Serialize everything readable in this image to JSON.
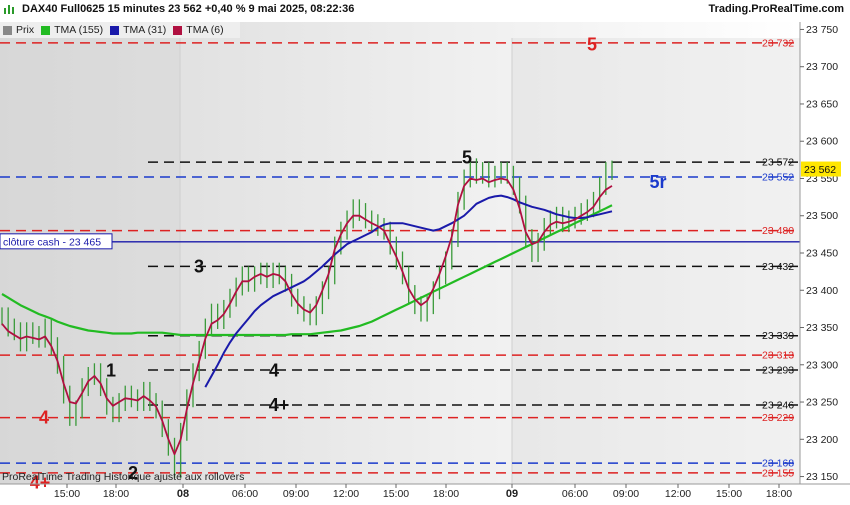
{
  "header": {
    "instrument_line": "DAX40 Full0625 15 minutes 23 562 +0,40 % 9 mai 2025, 08:22:36",
    "site": "Trading.ProRealTime.com"
  },
  "legend": [
    {
      "label": "Prix",
      "color": "#888888"
    },
    {
      "label": "TMA (155)",
      "color": "#22bb22"
    },
    {
      "label": "TMA (31)",
      "color": "#1a1aaa"
    },
    {
      "label": "TMA (6)",
      "color": "#b01040"
    }
  ],
  "footer": "ProRealTime Trading  Historique ajusté aux rollovers",
  "chart_data": {
    "type": "candlestick",
    "ylim": [
      23140,
      23760
    ],
    "y_ticks": [
      "23 150",
      "23 200",
      "23 250",
      "23 300",
      "23 350",
      "23 400",
      "23 450",
      "23 500",
      "23 550",
      "23 600",
      "23 650",
      "23 700",
      "23 750"
    ],
    "y_tick_values": [
      23150,
      23200,
      23250,
      23300,
      23350,
      23400,
      23450,
      23500,
      23550,
      23600,
      23650,
      23700,
      23750
    ],
    "x_ticks": [
      "15:00",
      "18:00",
      "08",
      "06:00",
      "09:00",
      "12:00",
      "15:00",
      "18:00",
      "09",
      "06:00",
      "09:00",
      "12:00",
      "15:00",
      "18:00"
    ],
    "x_tick_bold": [
      "08",
      "09"
    ],
    "last_price": {
      "label": "23 562",
      "value": 23562
    },
    "close_cash": {
      "label": "clôture cash -  23 465",
      "value": 23465
    },
    "levels": [
      {
        "value": 23732,
        "label": "23 732",
        "color": "#dd2222"
      },
      {
        "value": 23572,
        "label": "23 572",
        "color": "#111111"
      },
      {
        "value": 23552,
        "label": "23 552",
        "color": "#1a3acc"
      },
      {
        "value": 23480,
        "label": "23 480",
        "color": "#dd2222"
      },
      {
        "value": 23432,
        "label": "23 432",
        "color": "#111111"
      },
      {
        "value": 23339,
        "label": "23 339",
        "color": "#111111"
      },
      {
        "value": 23313,
        "label": "23 313",
        "color": "#dd2222"
      },
      {
        "value": 23293,
        "label": "23 293",
        "color": "#111111"
      },
      {
        "value": 23246,
        "label": "23 246",
        "color": "#111111"
      },
      {
        "value": 23229,
        "label": "23 229",
        "color": "#dd2222"
      },
      {
        "value": 23168,
        "label": "23 168",
        "color": "#1a3acc"
      },
      {
        "value": 23155,
        "label": "23 155",
        "color": "#dd2222"
      }
    ],
    "annotations": [
      {
        "text": "5",
        "price": 23730,
        "color": "#dd2222"
      },
      {
        "text": "5",
        "price": 23578,
        "color": "#111111"
      },
      {
        "text": "5r",
        "price": 23545,
        "color": "#1a3acc"
      },
      {
        "text": "3",
        "price": 23432,
        "color": "#111111"
      },
      {
        "text": "1",
        "price": 23292,
        "color": "#111111"
      },
      {
        "text": "4",
        "price": 23292,
        "color": "#111111"
      },
      {
        "text": "4+",
        "price": 23246,
        "color": "#111111"
      },
      {
        "text": "4",
        "price": 23229,
        "color": "#dd2222"
      },
      {
        "text": "2",
        "price": 23155,
        "color": "#111111"
      },
      {
        "text": "4+",
        "price": 23142,
        "color": "#dd2222"
      }
    ],
    "price_series": [
      23365,
      23350,
      23345,
      23330,
      23345,
      23340,
      23335,
      23350,
      23325,
      23300,
      23260,
      23230,
      23240,
      23270,
      23285,
      23290,
      23270,
      23245,
      23235,
      23250,
      23260,
      23255,
      23250,
      23265,
      23250,
      23240,
      23215,
      23190,
      23160,
      23210,
      23255,
      23290,
      23320,
      23350,
      23370,
      23360,
      23375,
      23390,
      23405,
      23420,
      23410,
      23420,
      23425,
      23415,
      23425,
      23420,
      23410,
      23390,
      23380,
      23370,
      23365,
      23380,
      23400,
      23420,
      23460,
      23480,
      23495,
      23510,
      23505,
      23495,
      23490,
      23485,
      23480,
      23460,
      23440,
      23420,
      23395,
      23380,
      23370,
      23380,
      23400,
      23420,
      23440,
      23470,
      23520,
      23550,
      23565,
      23555,
      23560,
      23550,
      23555,
      23560,
      23555,
      23540,
      23515,
      23470,
      23450,
      23465,
      23485,
      23495,
      23500,
      23490,
      23495,
      23500,
      23505,
      23510,
      23520,
      23540,
      23560,
      23562
    ],
    "tma6_series": [
      23355,
      23345,
      23340,
      23335,
      23338,
      23336,
      23334,
      23338,
      23325,
      23305,
      23275,
      23250,
      23248,
      23262,
      23278,
      23285,
      23275,
      23255,
      23245,
      23250,
      23255,
      23254,
      23252,
      23258,
      23252,
      23244,
      23225,
      23200,
      23180,
      23200,
      23240,
      23275,
      23305,
      23335,
      23355,
      23360,
      23368,
      23382,
      23398,
      23412,
      23412,
      23418,
      23422,
      23418,
      23422,
      23420,
      23412,
      23395,
      23382,
      23374,
      23370,
      23380,
      23400,
      23422,
      23455,
      23475,
      23490,
      23500,
      23500,
      23495,
      23490,
      23486,
      23480,
      23462,
      23445,
      23425,
      23402,
      23388,
      23380,
      23386,
      23402,
      23422,
      23445,
      23472,
      23515,
      23540,
      23550,
      23548,
      23550,
      23545,
      23548,
      23550,
      23548,
      23535,
      23510,
      23478,
      23462,
      23465,
      23478,
      23488,
      23492,
      23490,
      23492,
      23495,
      23500,
      23505,
      23512,
      23525,
      23535,
      23540
    ],
    "tma31_series": [
      null,
      null,
      null,
      null,
      null,
      null,
      null,
      null,
      null,
      null,
      null,
      null,
      null,
      null,
      null,
      null,
      null,
      null,
      null,
      null,
      null,
      null,
      null,
      null,
      null,
      null,
      null,
      null,
      null,
      null,
      null,
      null,
      null,
      23270,
      23285,
      23300,
      23316,
      23330,
      23342,
      23352,
      23362,
      23372,
      23380,
      23386,
      23392,
      23396,
      23400,
      23404,
      23408,
      23412,
      23418,
      23425,
      23432,
      23440,
      23448,
      23455,
      23462,
      23466,
      23470,
      23474,
      23478,
      23484,
      23488,
      23490,
      23490,
      23490,
      23488,
      23486,
      23484,
      23482,
      23480,
      23482,
      23486,
      23490,
      23495,
      23500,
      23508,
      23516,
      23520,
      23524,
      23526,
      23527,
      23525,
      23522,
      23518,
      23515,
      23512,
      23510,
      23508,
      23505,
      23502,
      23500,
      23498,
      23497,
      23497,
      23498,
      23500,
      23502,
      23504,
      23506
    ],
    "tma155_series": [
      23395,
      23390,
      23385,
      23380,
      23376,
      23372,
      23368,
      23365,
      23362,
      23358,
      23355,
      23352,
      23350,
      23348,
      23346,
      23345,
      23344,
      23343,
      23342,
      23342,
      23342,
      23342,
      23343,
      23343,
      23343,
      23343,
      23343,
      23342,
      23341,
      23340,
      23340,
      23340,
      23340,
      23340,
      23340,
      23340,
      23340,
      23340,
      23340,
      23340,
      23340,
      23340,
      23340,
      23340,
      23340,
      23340,
      23340,
      23341,
      23341,
      23341,
      23341,
      23342,
      23343,
      23344,
      23345,
      23346,
      23348,
      23350,
      23352,
      23355,
      23358,
      23362,
      23366,
      23370,
      23374,
      23378,
      23382,
      23386,
      23390,
      23394,
      23398,
      23402,
      23406,
      23410,
      23414,
      23418,
      23422,
      23426,
      23430,
      23434,
      23438,
      23442,
      23446,
      23450,
      23454,
      23458,
      23462,
      23466,
      23470,
      23474,
      23478,
      23482,
      23486,
      23490,
      23494,
      23498,
      23502,
      23506,
      23510,
      23514
    ]
  }
}
